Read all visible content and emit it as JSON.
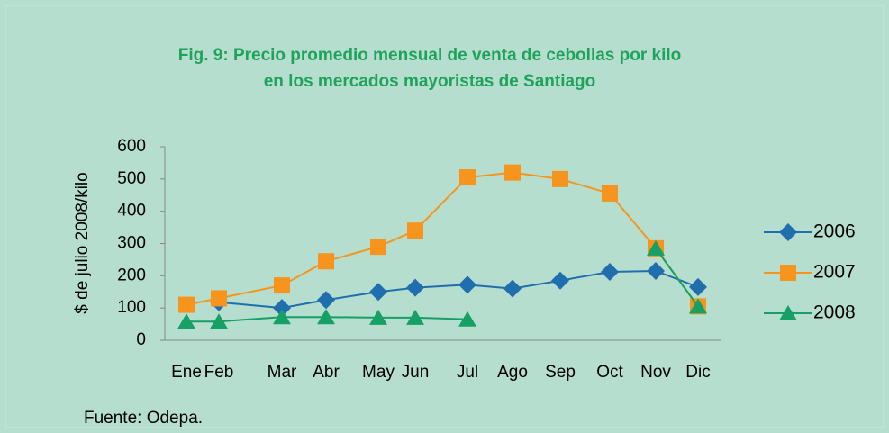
{
  "chart_data": {
    "type": "line",
    "title": "Fig. 9: Precio promedio mensual de venta de cebollas por kilo",
    "subtitle": "en los mercados mayoristas de Santiago",
    "y_label": "$ de julio 2008/kilo",
    "source": "Fuente: Odepa.",
    "categories": [
      "Ene",
      "Feb",
      "Mar",
      "Abr",
      "May",
      "Jun",
      "Jul",
      "Ago",
      "Sep",
      "Oct",
      "Nov",
      "Dic"
    ],
    "series": [
      {
        "name": "2006",
        "color": "#1f6fae",
        "marker": "diamond",
        "values": [
          null,
          118,
          100,
          125,
          150,
          163,
          172,
          160,
          185,
          212,
          215,
          165
        ]
      },
      {
        "name": "2007",
        "color": "#f7941d",
        "marker": "square",
        "values": [
          110,
          130,
          170,
          245,
          290,
          340,
          505,
          520,
          500,
          455,
          285,
          105
        ]
      },
      {
        "name": "2008",
        "color": "#16a065",
        "marker": "triangle",
        "values": [
          58,
          58,
          72,
          72,
          70,
          70,
          65,
          null,
          null,
          null,
          285,
          105
        ]
      }
    ],
    "ylim": [
      0,
      600
    ],
    "yticks": [
      0,
      100,
      200,
      300,
      400,
      500,
      600
    ],
    "grid": false,
    "legend": "right"
  }
}
